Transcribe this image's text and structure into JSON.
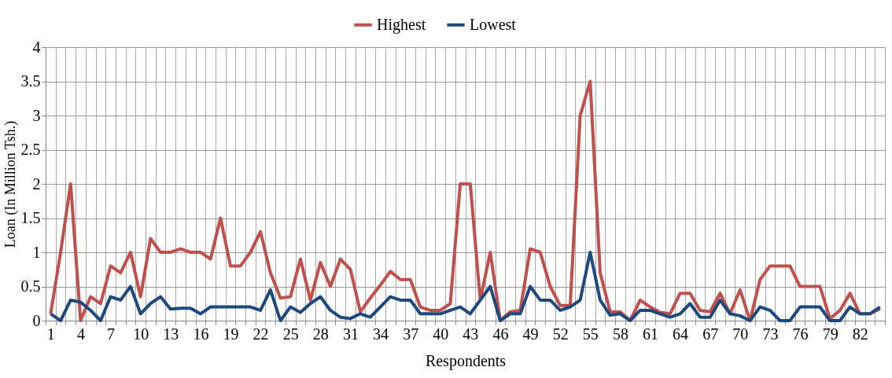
{
  "chart_data": {
    "type": "line",
    "xlabel": "Respondents",
    "ylabel": "Loan (In Million Tsh.)",
    "categories": [
      "1",
      null,
      null,
      "4",
      null,
      null,
      "7",
      null,
      null,
      "10",
      null,
      null,
      "13",
      null,
      null,
      "16",
      null,
      null,
      "19",
      null,
      null,
      "22",
      null,
      null,
      "25",
      null,
      null,
      "28",
      null,
      null,
      "31",
      null,
      null,
      "34",
      null,
      null,
      "37",
      null,
      null,
      "40",
      null,
      null,
      "43",
      null,
      null,
      "46",
      null,
      null,
      "49",
      null,
      null,
      "52",
      null,
      null,
      "55",
      null,
      null,
      "58",
      null,
      null,
      "61",
      null,
      null,
      "64",
      null,
      null,
      "67",
      null,
      null,
      "70",
      null,
      null,
      "73",
      null,
      null,
      "76",
      null,
      null,
      "79",
      null,
      null,
      "82",
      null,
      null
    ],
    "ylim": [
      0,
      4
    ],
    "yticks": [
      0,
      0.5,
      1,
      1.5,
      2,
      2.5,
      3,
      3.5,
      4
    ],
    "grid": true,
    "legend": "top",
    "line_style": "solid",
    "marker": "none",
    "series": [
      {
        "name": "Highest",
        "color": "#c0504d",
        "values": [
          0.1,
          1.0,
          2.0,
          0,
          0.35,
          0.25,
          0.8,
          0.7,
          1.0,
          0.35,
          1.2,
          1.0,
          1.0,
          1.05,
          1.0,
          1.0,
          0.9,
          1.5,
          0.8,
          0.8,
          1.0,
          1.3,
          0.7,
          0.33,
          0.35,
          0.9,
          0.3,
          0.85,
          0.5,
          0.9,
          0.75,
          0.13,
          0.33,
          0.52,
          0.72,
          0.6,
          0.6,
          0.2,
          0.15,
          0.15,
          0.25,
          2.0,
          2.0,
          0.3,
          1.0,
          0,
          0.13,
          0.15,
          1.05,
          1.0,
          0.5,
          0.22,
          0.22,
          3.0,
          3.5,
          0.7,
          0.13,
          0.13,
          0,
          0.3,
          0.2,
          0.12,
          0.1,
          0.4,
          0.4,
          0.15,
          0.13,
          0.4,
          0.1,
          0.45,
          0,
          0.6,
          0.8,
          0.8,
          0.8,
          0.5,
          0.5,
          0.5,
          0.03,
          0.15,
          0.4,
          0.1,
          0.1,
          0.17
        ]
      },
      {
        "name": "Lowest",
        "color": "#1f497d",
        "values": [
          0.1,
          0,
          0.3,
          0.27,
          0.15,
          0,
          0.35,
          0.3,
          0.5,
          0.1,
          0.25,
          0.35,
          0.17,
          0.18,
          0.18,
          0.1,
          0.2,
          0.2,
          0.2,
          0.2,
          0.2,
          0.15,
          0.45,
          0,
          0.2,
          0.12,
          0.25,
          0.35,
          0.15,
          0.05,
          0.03,
          0.1,
          0.05,
          0.2,
          0.35,
          0.3,
          0.3,
          0.1,
          0.1,
          0.1,
          0.15,
          0.2,
          0.1,
          0.3,
          0.5,
          0,
          0.1,
          0.1,
          0.5,
          0.3,
          0.3,
          0.15,
          0.2,
          0.3,
          1.0,
          0.3,
          0.08,
          0.1,
          0,
          0.15,
          0.15,
          0.1,
          0.05,
          0.1,
          0.25,
          0.05,
          0.05,
          0.3,
          0.1,
          0.07,
          0,
          0.2,
          0.15,
          0,
          0,
          0.2,
          0.2,
          0.2,
          0,
          0,
          0.2,
          0.1,
          0.1,
          0.2
        ]
      }
    ]
  }
}
